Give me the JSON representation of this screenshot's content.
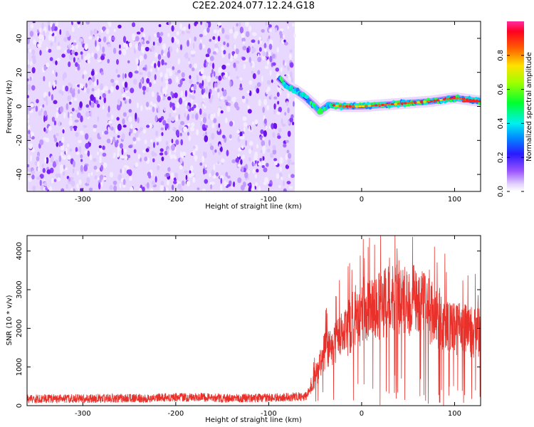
{
  "title": "C2E2.2024.077.12.24.G18",
  "chart_data": [
    {
      "type": "heatmap",
      "xlabel": "Height of straight line (km)",
      "ylabel": "Frequency (Hz)",
      "xlim": [
        -360,
        128
      ],
      "ylim": [
        -50,
        50
      ],
      "x_ticks": [
        -300,
        -200,
        -100,
        0,
        100
      ],
      "y_ticks": [
        -40,
        -20,
        0,
        20,
        40
      ],
      "colorbar": {
        "label": "Normalized spectral amplitude",
        "range": [
          0,
          1
        ],
        "ticks": [
          0.0,
          0.2,
          0.4,
          0.6,
          0.8
        ]
      },
      "noise_region_x": [
        -360,
        -72
      ],
      "signal_track": [
        {
          "x": -90,
          "y": 17
        },
        {
          "x": -80,
          "y": 12
        },
        {
          "x": -70,
          "y": 9
        },
        {
          "x": -60,
          "y": 5
        },
        {
          "x": -50,
          "y": 0
        },
        {
          "x": -45,
          "y": -3
        },
        {
          "x": -35,
          "y": 1
        },
        {
          "x": -20,
          "y": 0
        },
        {
          "x": 0,
          "y": 0
        },
        {
          "x": 25,
          "y": 1
        },
        {
          "x": 50,
          "y": 2
        },
        {
          "x": 75,
          "y": 3
        },
        {
          "x": 100,
          "y": 5
        },
        {
          "x": 128,
          "y": 3
        }
      ],
      "grid": false
    },
    {
      "type": "line",
      "xlabel": "Height of straight line (km)",
      "ylabel": "SNR (10 * v/v)",
      "xlim": [
        -360,
        128
      ],
      "ylim": [
        0,
        4400
      ],
      "x_ticks": [
        -300,
        -200,
        -100,
        0,
        100
      ],
      "y_ticks": [
        0,
        1000,
        2000,
        3000,
        4000
      ],
      "series_color": "#e8312a",
      "envelope": [
        {
          "x": -360,
          "y": 150
        },
        {
          "x": -250,
          "y": 170
        },
        {
          "x": -180,
          "y": 200
        },
        {
          "x": -150,
          "y": 170
        },
        {
          "x": -100,
          "y": 180
        },
        {
          "x": -60,
          "y": 220
        },
        {
          "x": -50,
          "y": 700
        },
        {
          "x": -40,
          "y": 1400
        },
        {
          "x": -25,
          "y": 1700
        },
        {
          "x": -10,
          "y": 2100
        },
        {
          "x": 0,
          "y": 2300
        },
        {
          "x": 20,
          "y": 2600
        },
        {
          "x": 40,
          "y": 2800
        },
        {
          "x": 60,
          "y": 2700
        },
        {
          "x": 80,
          "y": 2300
        },
        {
          "x": 100,
          "y": 2000
        },
        {
          "x": 128,
          "y": 1850
        }
      ],
      "grid": false
    }
  ]
}
